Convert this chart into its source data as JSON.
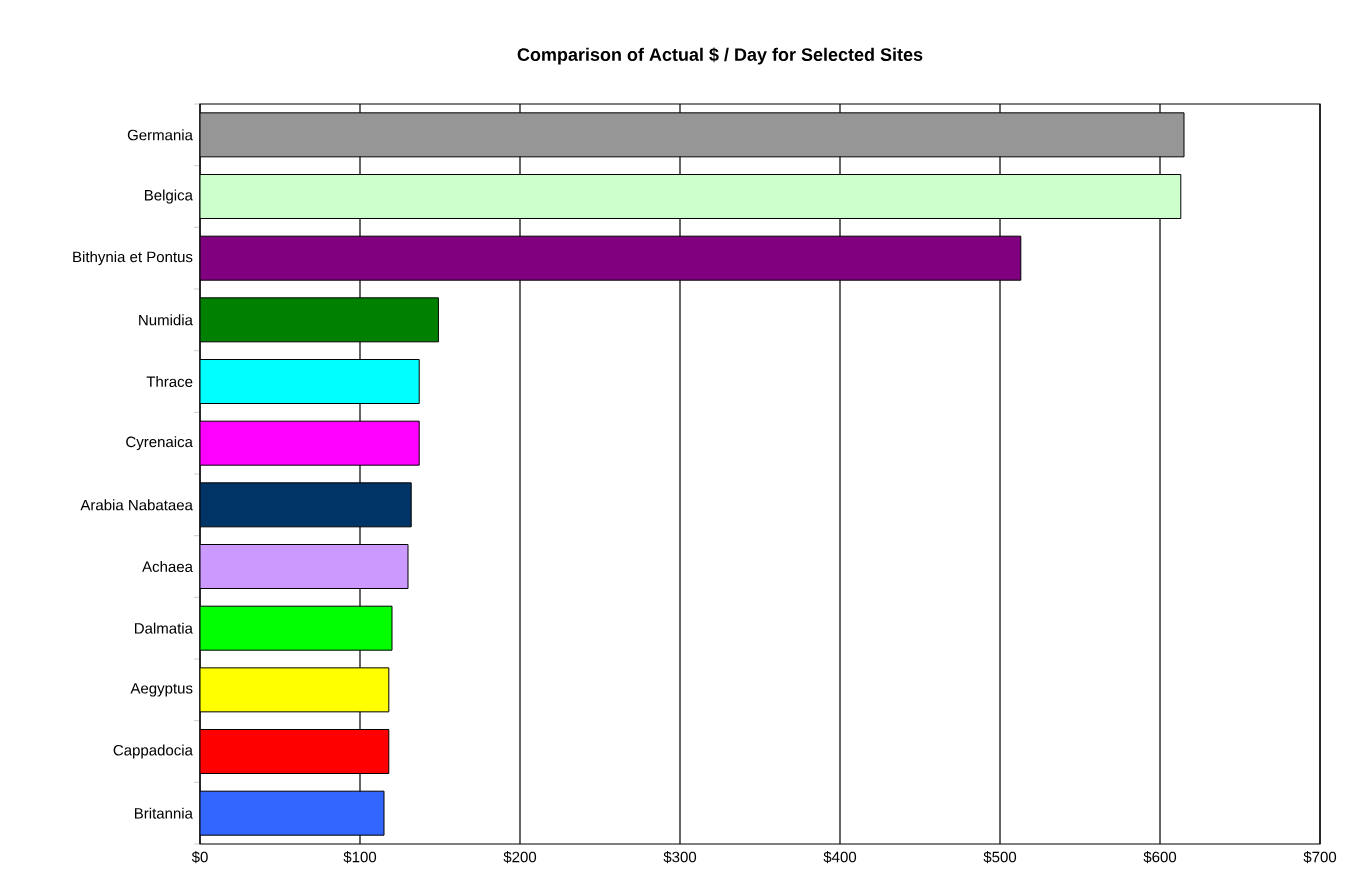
{
  "chart_data": {
    "type": "bar",
    "orientation": "horizontal",
    "title": "Comparison of Actual $  / Day for Selected Sites",
    "categories": [
      "Germania",
      "Belgica",
      "Bithynia et Pontus",
      "Numidia",
      "Thrace",
      "Cyrenaica",
      "Arabia Nabataea",
      "Achaea",
      "Dalmatia",
      "Aegyptus",
      "Cappadocia",
      "Britannia"
    ],
    "values": [
      615,
      613,
      513,
      149,
      137,
      137,
      132,
      130,
      120,
      118,
      118,
      115
    ],
    "colors": [
      "#969696",
      "#ccffcc",
      "#800080",
      "#008000",
      "#00ffff",
      "#ff00ff",
      "#003366",
      "#cc99ff",
      "#00ff00",
      "#ffff00",
      "#ff0000",
      "#3366ff"
    ],
    "xlim": [
      0,
      700
    ],
    "xticks": [
      {
        "value": 0,
        "label": "$0"
      },
      {
        "value": 100,
        "label": "$100"
      },
      {
        "value": 200,
        "label": "$200"
      },
      {
        "value": 300,
        "label": "$300"
      },
      {
        "value": 400,
        "label": "$400"
      },
      {
        "value": 500,
        "label": "$500"
      },
      {
        "value": 600,
        "label": "$600"
      },
      {
        "value": 700,
        "label": "$700"
      }
    ],
    "grid": "x"
  }
}
